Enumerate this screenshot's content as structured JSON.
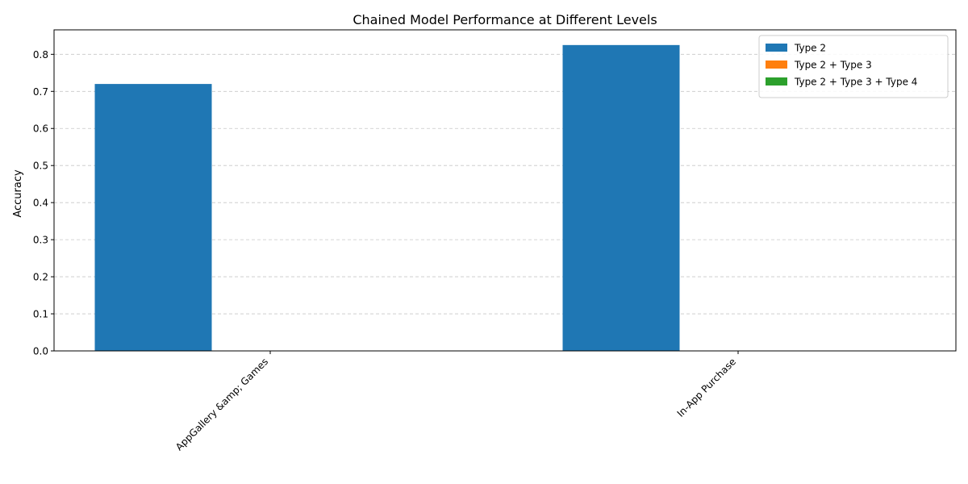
{
  "chart_data": {
    "type": "bar",
    "title": "Chained Model Performance at Different Levels",
    "xlabel": "",
    "ylabel": "Accuracy",
    "categories": [
      "AppGallery &amp; Games",
      "In-App Purchase"
    ],
    "series": [
      {
        "name": "Type 2",
        "values": [
          0.72,
          0.825
        ],
        "color": "#1f77b4"
      },
      {
        "name": "Type 2 + Type 3",
        "values": [
          0,
          0
        ],
        "color": "#ff7f0e"
      },
      {
        "name": "Type 2 + Type 3 + Type 4",
        "values": [
          0,
          0
        ],
        "color": "#2ca02c"
      }
    ],
    "ylim": [
      0,
      0.866
    ],
    "yticks": [
      0.0,
      0.1,
      0.2,
      0.3,
      0.4,
      0.5,
      0.6,
      0.7,
      0.8
    ],
    "ytick_labels": [
      "0.0",
      "0.1",
      "0.2",
      "0.3",
      "0.4",
      "0.5",
      "0.6",
      "0.7",
      "0.8"
    ],
    "grid": "y-dashed",
    "legend": "top-right"
  }
}
